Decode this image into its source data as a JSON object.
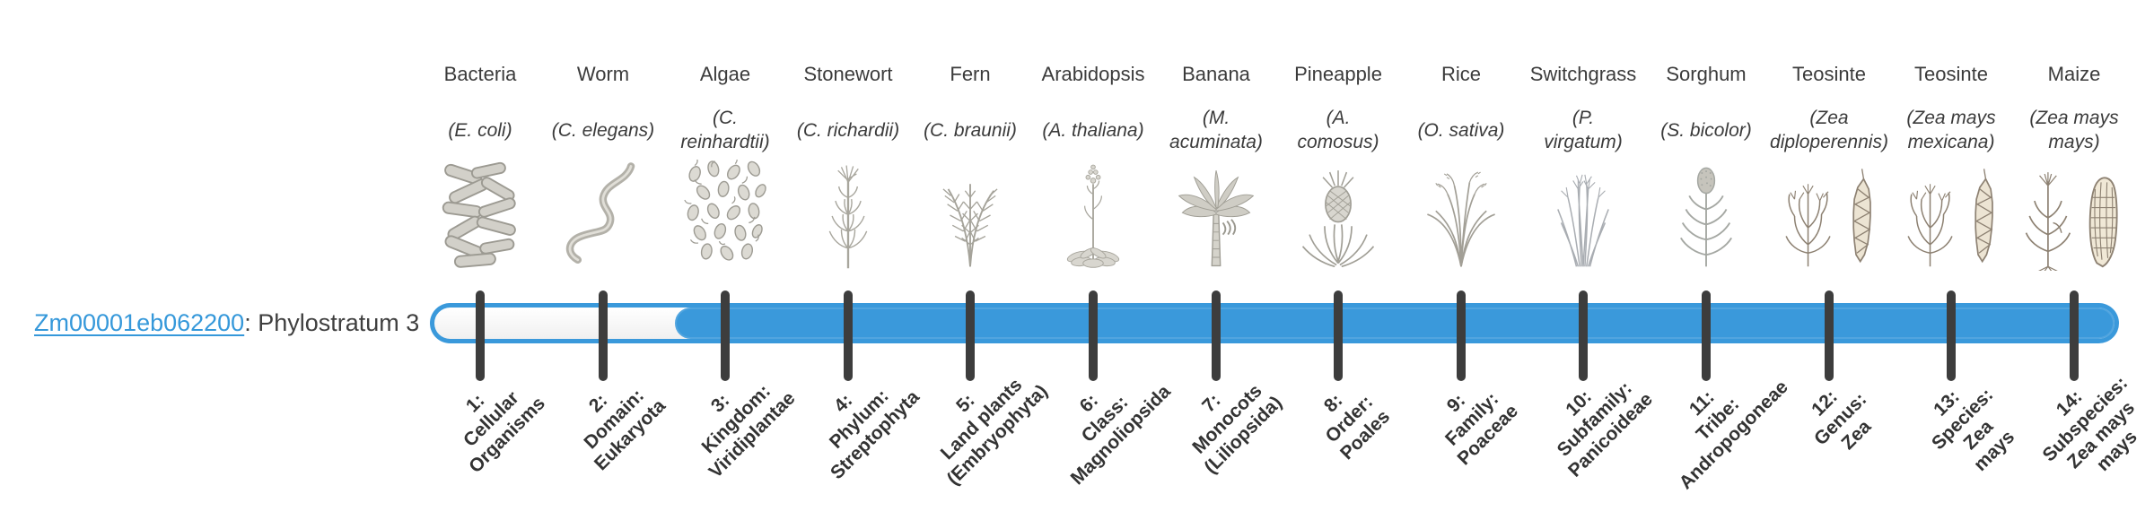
{
  "gene": {
    "id": "Zm00001eb062200",
    "annotation": ": Phylostratum 3",
    "phylostratum": 3
  },
  "strata": [
    {
      "index": 1,
      "common_name": "Bacteria",
      "species": "(E. coli)",
      "rank_label": "1:\nCellular\nOrganisms",
      "image": "bacteria"
    },
    {
      "index": 2,
      "common_name": "Worm",
      "species": "(C. elegans)",
      "rank_label": "2:\nDomain:\nEukaryota",
      "image": "worm"
    },
    {
      "index": 3,
      "common_name": "Algae",
      "species": "(C.\nreinhardtii)",
      "rank_label": "3:\nKingdom:\nViridiplantae",
      "image": "algae"
    },
    {
      "index": 4,
      "common_name": "Stonewort",
      "species": "(C. richardii)",
      "rank_label": "4:\nPhylum:\nStreptophyta",
      "image": "stonewort"
    },
    {
      "index": 5,
      "common_name": "Fern",
      "species": "(C. braunii)",
      "rank_label": "5:\nLand plants\n(Embryophyta)",
      "image": "fern"
    },
    {
      "index": 6,
      "common_name": "Arabidopsis",
      "species": "(A. thaliana)",
      "rank_label": "6:\nClass:\nMagnoliopsida",
      "image": "arabidopsis"
    },
    {
      "index": 7,
      "common_name": "Banana",
      "species": "(M.\nacuminata)",
      "rank_label": "7:\nMonocots\n(Liliopsida)",
      "image": "banana"
    },
    {
      "index": 8,
      "common_name": "Pineapple",
      "species": "(A.\ncomosus)",
      "rank_label": "8:\nOrder:\nPoales",
      "image": "pineapple"
    },
    {
      "index": 9,
      "common_name": "Rice",
      "species": "(O. sativa)",
      "rank_label": "9:\nFamily:\nPoaceae",
      "image": "rice"
    },
    {
      "index": 10,
      "common_name": "Switchgrass",
      "species": "(P.\nvirgatum)",
      "rank_label": "10:\nSubfamily:\nPanicoideae",
      "image": "switchgrass"
    },
    {
      "index": 11,
      "common_name": "Sorghum",
      "species": "(S. bicolor)",
      "rank_label": "11:\nTribe:\nAndropogoneae",
      "image": "sorghum"
    },
    {
      "index": 12,
      "common_name": "Teosinte",
      "species": "(Zea\ndiploperennis)",
      "rank_label": "12:\nGenus:\nZea",
      "image": "teosinte"
    },
    {
      "index": 13,
      "common_name": "Teosinte",
      "species": "(Zea mays\nmexicana)",
      "rank_label": "13:\nSpecies:\nZea\nmays",
      "image": "teosinte"
    },
    {
      "index": 14,
      "common_name": "Maize",
      "species": "(Zea mays\nmays)",
      "rank_label": "14:\nSubspecies:\nZea mays\nmays",
      "image": "maize"
    }
  ],
  "chart_data": {
    "type": "bar",
    "title": "Zm00001eb062200: Phylostratum 3",
    "orientation": "horizontal",
    "x_categories": [
      "1: Cellular Organisms",
      "2: Domain: Eukaryota",
      "3: Kingdom: Viridiplantae",
      "4: Phylum: Streptophyta",
      "5: Land plants (Embryophyta)",
      "6: Class: Magnoliopsida",
      "7: Monocots (Liliopsida)",
      "8: Order: Poales",
      "9: Family: Poaceae",
      "10: Subfamily: Panicoideae",
      "11: Tribe: Andropogoneae",
      "12: Genus: Zea",
      "13: Species: Zea mays",
      "14: Subspecies: Zea mays mays"
    ],
    "x_organisms": [
      "Bacteria (E. coli)",
      "Worm (C. elegans)",
      "Algae (C. reinhardtii)",
      "Stonewort (C. richardii)",
      "Fern (C. braunii)",
      "Arabidopsis (A. thaliana)",
      "Banana (M. acuminata)",
      "Pineapple (A. comosus)",
      "Rice (O. sativa)",
      "Switchgrass (P. virgatum)",
      "Sorghum (S. bicolor)",
      "Teosinte (Zea diploperennis)",
      "Teosinte (Zea mays mexicana)",
      "Maize (Zea mays mays)"
    ],
    "series": [
      {
        "name": "Zm00001eb062200",
        "bar_start_stratum": 3,
        "bar_end_stratum": 14
      }
    ],
    "axis_range": [
      1,
      14
    ],
    "grid": false,
    "legend_position": "none",
    "colors": {
      "bar_fill": "#3A99DB",
      "bar_track": "#FFFFFF",
      "tick": "#3D3D3D",
      "link": "#3598DA",
      "text": "#3B3B3B"
    }
  }
}
